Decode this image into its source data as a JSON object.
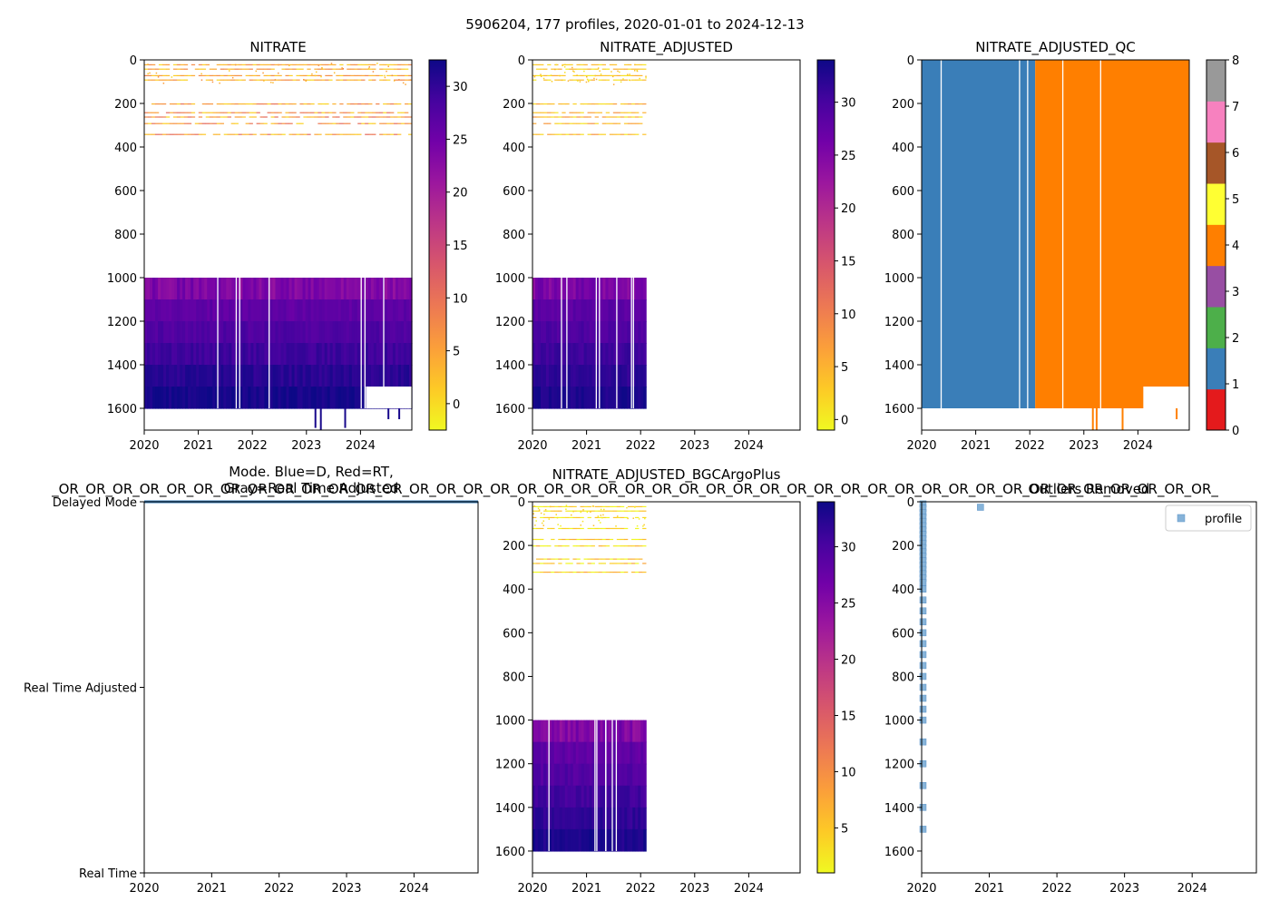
{
  "suptitle": "5906204, 177 profiles, 2020-01-01 to 2024-12-13",
  "colors": {
    "plasma": [
      "#f0f921",
      "#fdca26",
      "#fb9f3a",
      "#ed7953",
      "#d8576b",
      "#bd3786",
      "#9c179e",
      "#7201a8",
      "#46039f",
      "#0d0887"
    ],
    "qc_blue": "#3a7eb8",
    "qc_orange": "#ff7f0e",
    "mode_line": "#3a7eb8",
    "profile_marker": "#86b3d9"
  },
  "chart_data": [
    {
      "id": "nitrate",
      "type": "heatmap",
      "title": "NITRATE",
      "x_ticks": [
        "2020",
        "2021",
        "2022",
        "2023",
        "2024"
      ],
      "xlim": [
        2020,
        2024.95
      ],
      "ylim": [
        1700,
        0
      ],
      "y_ticks": [
        "0",
        "200",
        "400",
        "600",
        "800",
        "1000",
        "1200",
        "1400",
        "1600"
      ],
      "colorbar": {
        "ticks": [
          "0",
          "5",
          "10",
          "15",
          "20",
          "25",
          "30"
        ],
        "range": [
          -2.5,
          32.5
        ]
      },
      "data_end_year": 2024.95,
      "deep_layer": {
        "depth_range": [
          1000,
          1600
        ],
        "value_range": [
          25,
          32
        ]
      },
      "shallow_lines_depths": [
        20,
        40,
        70,
        90,
        200,
        240,
        260,
        290,
        340
      ],
      "shallow_value_range": [
        0,
        8
      ]
    },
    {
      "id": "nitrate_adjusted",
      "type": "heatmap",
      "title": "NITRATE_ADJUSTED",
      "x_ticks": [
        "2020",
        "2021",
        "2022",
        "2023",
        "2024"
      ],
      "xlim": [
        2020,
        2024.95
      ],
      "ylim": [
        1700,
        0
      ],
      "y_ticks": [
        "0",
        "200",
        "400",
        "600",
        "800",
        "1000",
        "1200",
        "1400",
        "1600"
      ],
      "colorbar": {
        "ticks": [
          "0",
          "5",
          "10",
          "15",
          "20",
          "25",
          "30"
        ],
        "range": [
          -1,
          34
        ]
      },
      "data_end_year": 2022.1,
      "deep_layer": {
        "depth_range": [
          1000,
          1600
        ],
        "value_range": [
          27,
          33
        ]
      },
      "shallow_lines_depths": [
        20,
        40,
        70,
        90,
        200,
        240,
        260,
        290,
        340
      ],
      "shallow_value_range": [
        0,
        6
      ]
    },
    {
      "id": "nitrate_adjusted_qc",
      "type": "heatmap",
      "title": "NITRATE_ADJUSTED_QC",
      "x_ticks": [
        "2020",
        "2021",
        "2022",
        "2023",
        "2024"
      ],
      "xlim": [
        2020,
        2024.95
      ],
      "ylim": [
        1700,
        0
      ],
      "y_ticks": [
        "0",
        "200",
        "400",
        "600",
        "800",
        "1000",
        "1200",
        "1400",
        "1600"
      ],
      "colorbar": {
        "ticks": [
          "0",
          "1",
          "2",
          "3",
          "4",
          "5",
          "6",
          "7",
          "8"
        ],
        "categories": [
          "#e41a1c",
          "#3a7eb8",
          "#4daf4a",
          "#984ea3",
          "#ff7f00",
          "#ffff33",
          "#a65628",
          "#f781bf",
          "#999999"
        ]
      },
      "segments": [
        {
          "qc": 1,
          "x_range": [
            2020,
            2022.1
          ]
        },
        {
          "qc": 4,
          "x_range": [
            2022.1,
            2024.95
          ]
        }
      ]
    },
    {
      "id": "mode",
      "type": "line",
      "title": "Mode. Blue=D, Red=RT,",
      "title_line2": "Gray=Real Time Adjusted",
      "overlay_text": "_OR_OR_OR_OR_OR_OR_OR_OR_OR_OR_OR_OR_OR_OR_OR_OR_OR_OR_OR_OR_OR_OR_OR_OR_OR_OR_OR_OR_OR_OR_OR_OR_OR_OR_OR_OR_OR_OR_OR_OR_OR_OR_OR_",
      "x_ticks": [
        "2020",
        "2021",
        "2022",
        "2023",
        "2024"
      ],
      "xlim": [
        2020,
        2024.95
      ],
      "y_ticks": [
        "Real Time",
        "Real Time Adjusted",
        "Delayed Mode"
      ],
      "ylim": [
        0,
        2
      ],
      "series": [
        {
          "name": "Delayed Mode",
          "y": 2,
          "x_range": [
            2020,
            2024.95
          ]
        }
      ]
    },
    {
      "id": "nitrate_bgcargoplus",
      "type": "heatmap",
      "title": "NITRATE_ADJUSTED_BGCArgoPlus",
      "x_ticks": [
        "2020",
        "2021",
        "2022",
        "2023",
        "2024"
      ],
      "xlim": [
        2020,
        2024.95
      ],
      "ylim": [
        1700,
        0
      ],
      "y_ticks": [
        "0",
        "200",
        "400",
        "600",
        "800",
        "1000",
        "1200",
        "1400",
        "1600"
      ],
      "colorbar": {
        "ticks": [
          "5",
          "10",
          "15",
          "20",
          "25",
          "30"
        ],
        "range": [
          1,
          34
        ]
      },
      "data_end_year": 2022.1,
      "deep_layer": {
        "depth_range": [
          1000,
          1600
        ],
        "value_range": [
          27,
          33
        ]
      },
      "shallow_lines_depths": [
        20,
        40,
        70,
        120,
        170,
        200,
        260,
        280,
        320
      ],
      "shallow_value_range": [
        0,
        6
      ]
    },
    {
      "id": "outliers",
      "type": "scatter",
      "title": "Outliers Removed",
      "x_ticks": [
        "2020",
        "2021",
        "2022",
        "2023",
        "2024"
      ],
      "xlim": [
        2020,
        2024.95
      ],
      "ylim": [
        1700,
        0
      ],
      "y_ticks": [
        "0",
        "200",
        "400",
        "600",
        "800",
        "1000",
        "1200",
        "1400",
        "1600"
      ],
      "legend": "profile",
      "legend_position": "top-right",
      "points": [
        [
          2020.02,
          10
        ],
        [
          2020.02,
          30
        ],
        [
          2020.02,
          50
        ],
        [
          2020.02,
          70
        ],
        [
          2020.02,
          90
        ],
        [
          2020.02,
          110
        ],
        [
          2020.02,
          130
        ],
        [
          2020.02,
          150
        ],
        [
          2020.02,
          170
        ],
        [
          2020.02,
          190
        ],
        [
          2020.02,
          210
        ],
        [
          2020.02,
          230
        ],
        [
          2020.02,
          250
        ],
        [
          2020.02,
          270
        ],
        [
          2020.02,
          290
        ],
        [
          2020.02,
          310
        ],
        [
          2020.02,
          330
        ],
        [
          2020.02,
          350
        ],
        [
          2020.02,
          370
        ],
        [
          2020.02,
          400
        ],
        [
          2020.02,
          450
        ],
        [
          2020.02,
          500
        ],
        [
          2020.02,
          550
        ],
        [
          2020.02,
          600
        ],
        [
          2020.02,
          650
        ],
        [
          2020.02,
          700
        ],
        [
          2020.02,
          750
        ],
        [
          2020.02,
          800
        ],
        [
          2020.02,
          850
        ],
        [
          2020.02,
          900
        ],
        [
          2020.02,
          950
        ],
        [
          2020.02,
          1000
        ],
        [
          2020.02,
          1100
        ],
        [
          2020.02,
          1200
        ],
        [
          2020.02,
          1300
        ],
        [
          2020.02,
          1400
        ],
        [
          2020.02,
          1500
        ],
        [
          2020.87,
          25
        ]
      ]
    }
  ]
}
